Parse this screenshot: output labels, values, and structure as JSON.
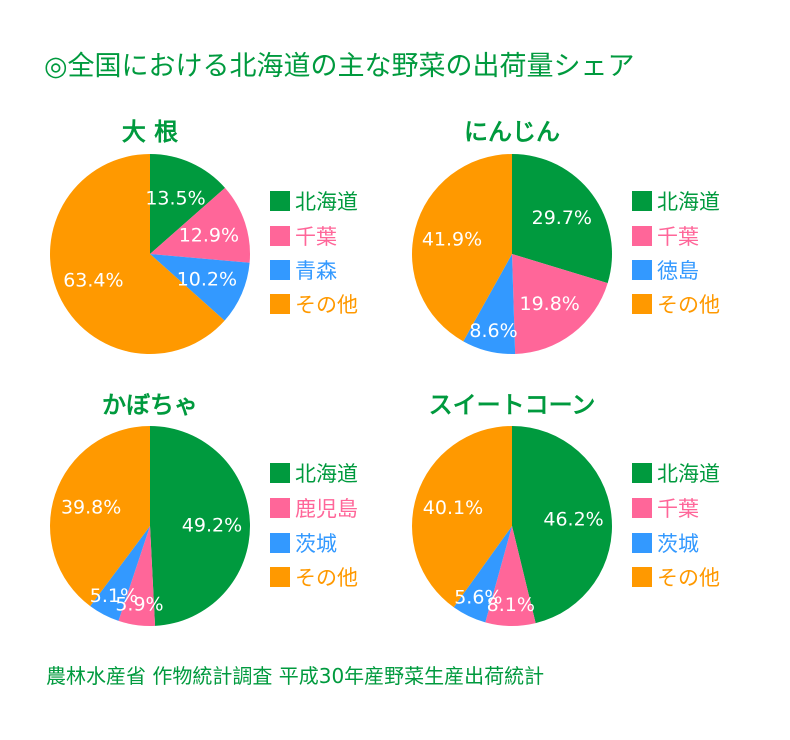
{
  "title": "◎全国における北海道の主な野菜の出荷量シェア",
  "source": "農林水産省 作物統計調査 平成30年産野菜生産出荷統計",
  "colors": {
    "hokkaido": "#009a3e",
    "second": "#ff6699",
    "third": "#3399ff",
    "other": "#ff9900"
  },
  "chart_data": [
    {
      "type": "pie",
      "title": "大 根",
      "categories": [
        "北海道",
        "千葉",
        "青森",
        "その他"
      ],
      "values": [
        13.5,
        12.9,
        10.2,
        63.4
      ],
      "labels": [
        "13.5%",
        "12.9%",
        "10.2%",
        "63.4%"
      ],
      "legend": "right"
    },
    {
      "type": "pie",
      "title": "にんじん",
      "categories": [
        "北海道",
        "千葉",
        "徳島",
        "その他"
      ],
      "values": [
        29.7,
        19.8,
        8.6,
        41.9
      ],
      "labels": [
        "29.7%",
        "19.8%",
        "8.6%",
        "41.9%"
      ],
      "legend": "right"
    },
    {
      "type": "pie",
      "title": "かぼちゃ",
      "categories": [
        "北海道",
        "鹿児島",
        "茨城",
        "その他"
      ],
      "values": [
        49.2,
        5.9,
        5.1,
        39.8
      ],
      "labels": [
        "49.2%",
        "5.9%",
        "5.1%",
        "39.8%"
      ],
      "legend": "right"
    },
    {
      "type": "pie",
      "title": "スイートコーン",
      "categories": [
        "北海道",
        "千葉",
        "茨城",
        "その他"
      ],
      "values": [
        46.2,
        8.1,
        5.6,
        40.1
      ],
      "labels": [
        "46.2%",
        "8.1%",
        "5.6%",
        "40.1%"
      ],
      "legend": "right"
    }
  ]
}
